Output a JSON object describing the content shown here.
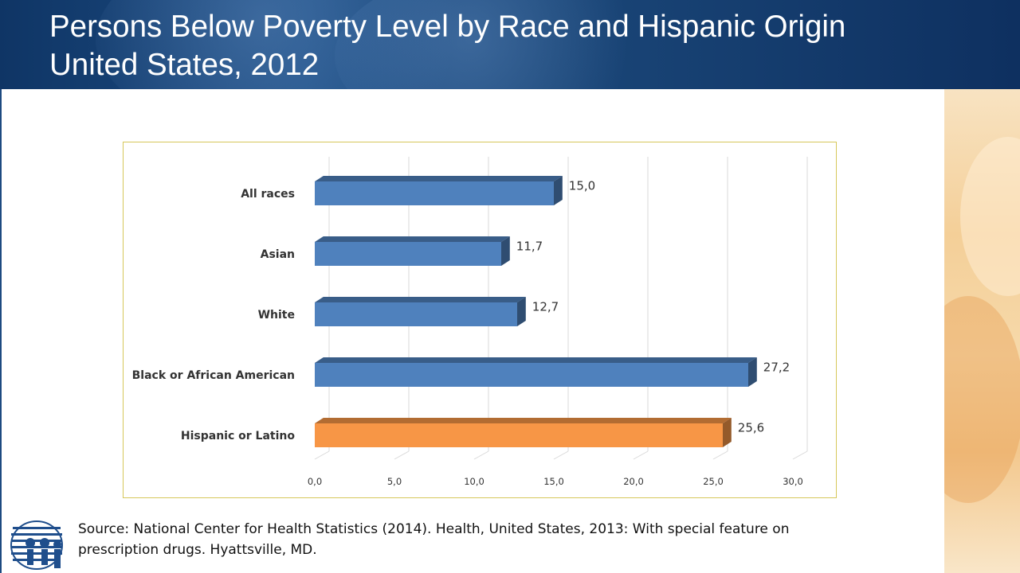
{
  "header": {
    "title_line1": "Persons Below Poverty Level by Race and Hispanic Origin",
    "title_line2": "United States, 2012"
  },
  "source": {
    "line1": "Source: National Center for Health Statistics (2014). Health, United States, 2013: With special feature on",
    "line2": "prescription drugs. Hyattsville, MD."
  },
  "colors": {
    "blue_bar": "#4f81bd",
    "orange_bar": "#f79646",
    "header_bg": "#163e70"
  },
  "chart_data": {
    "type": "bar",
    "orientation": "horizontal",
    "style": "3d",
    "title": "",
    "xlabel": "",
    "ylabel": "",
    "categories": [
      "All races",
      "Asian",
      "White",
      "Black or African American",
      "Hispanic or Latino"
    ],
    "values": [
      15.0,
      11.7,
      12.7,
      27.2,
      25.6
    ],
    "value_labels": [
      "15,0",
      "11,7",
      "12,7",
      "27,2",
      "25,6"
    ],
    "bar_colors": [
      "#4f81bd",
      "#4f81bd",
      "#4f81bd",
      "#4f81bd",
      "#f79646"
    ],
    "xlim": [
      0,
      30
    ],
    "xticks": [
      0,
      5,
      10,
      15,
      20,
      25,
      30
    ],
    "xtick_labels": [
      "0,0",
      "5,0",
      "10,0",
      "15,0",
      "20,0",
      "25,0",
      "30,0"
    ],
    "grid": true,
    "legend": "none"
  }
}
